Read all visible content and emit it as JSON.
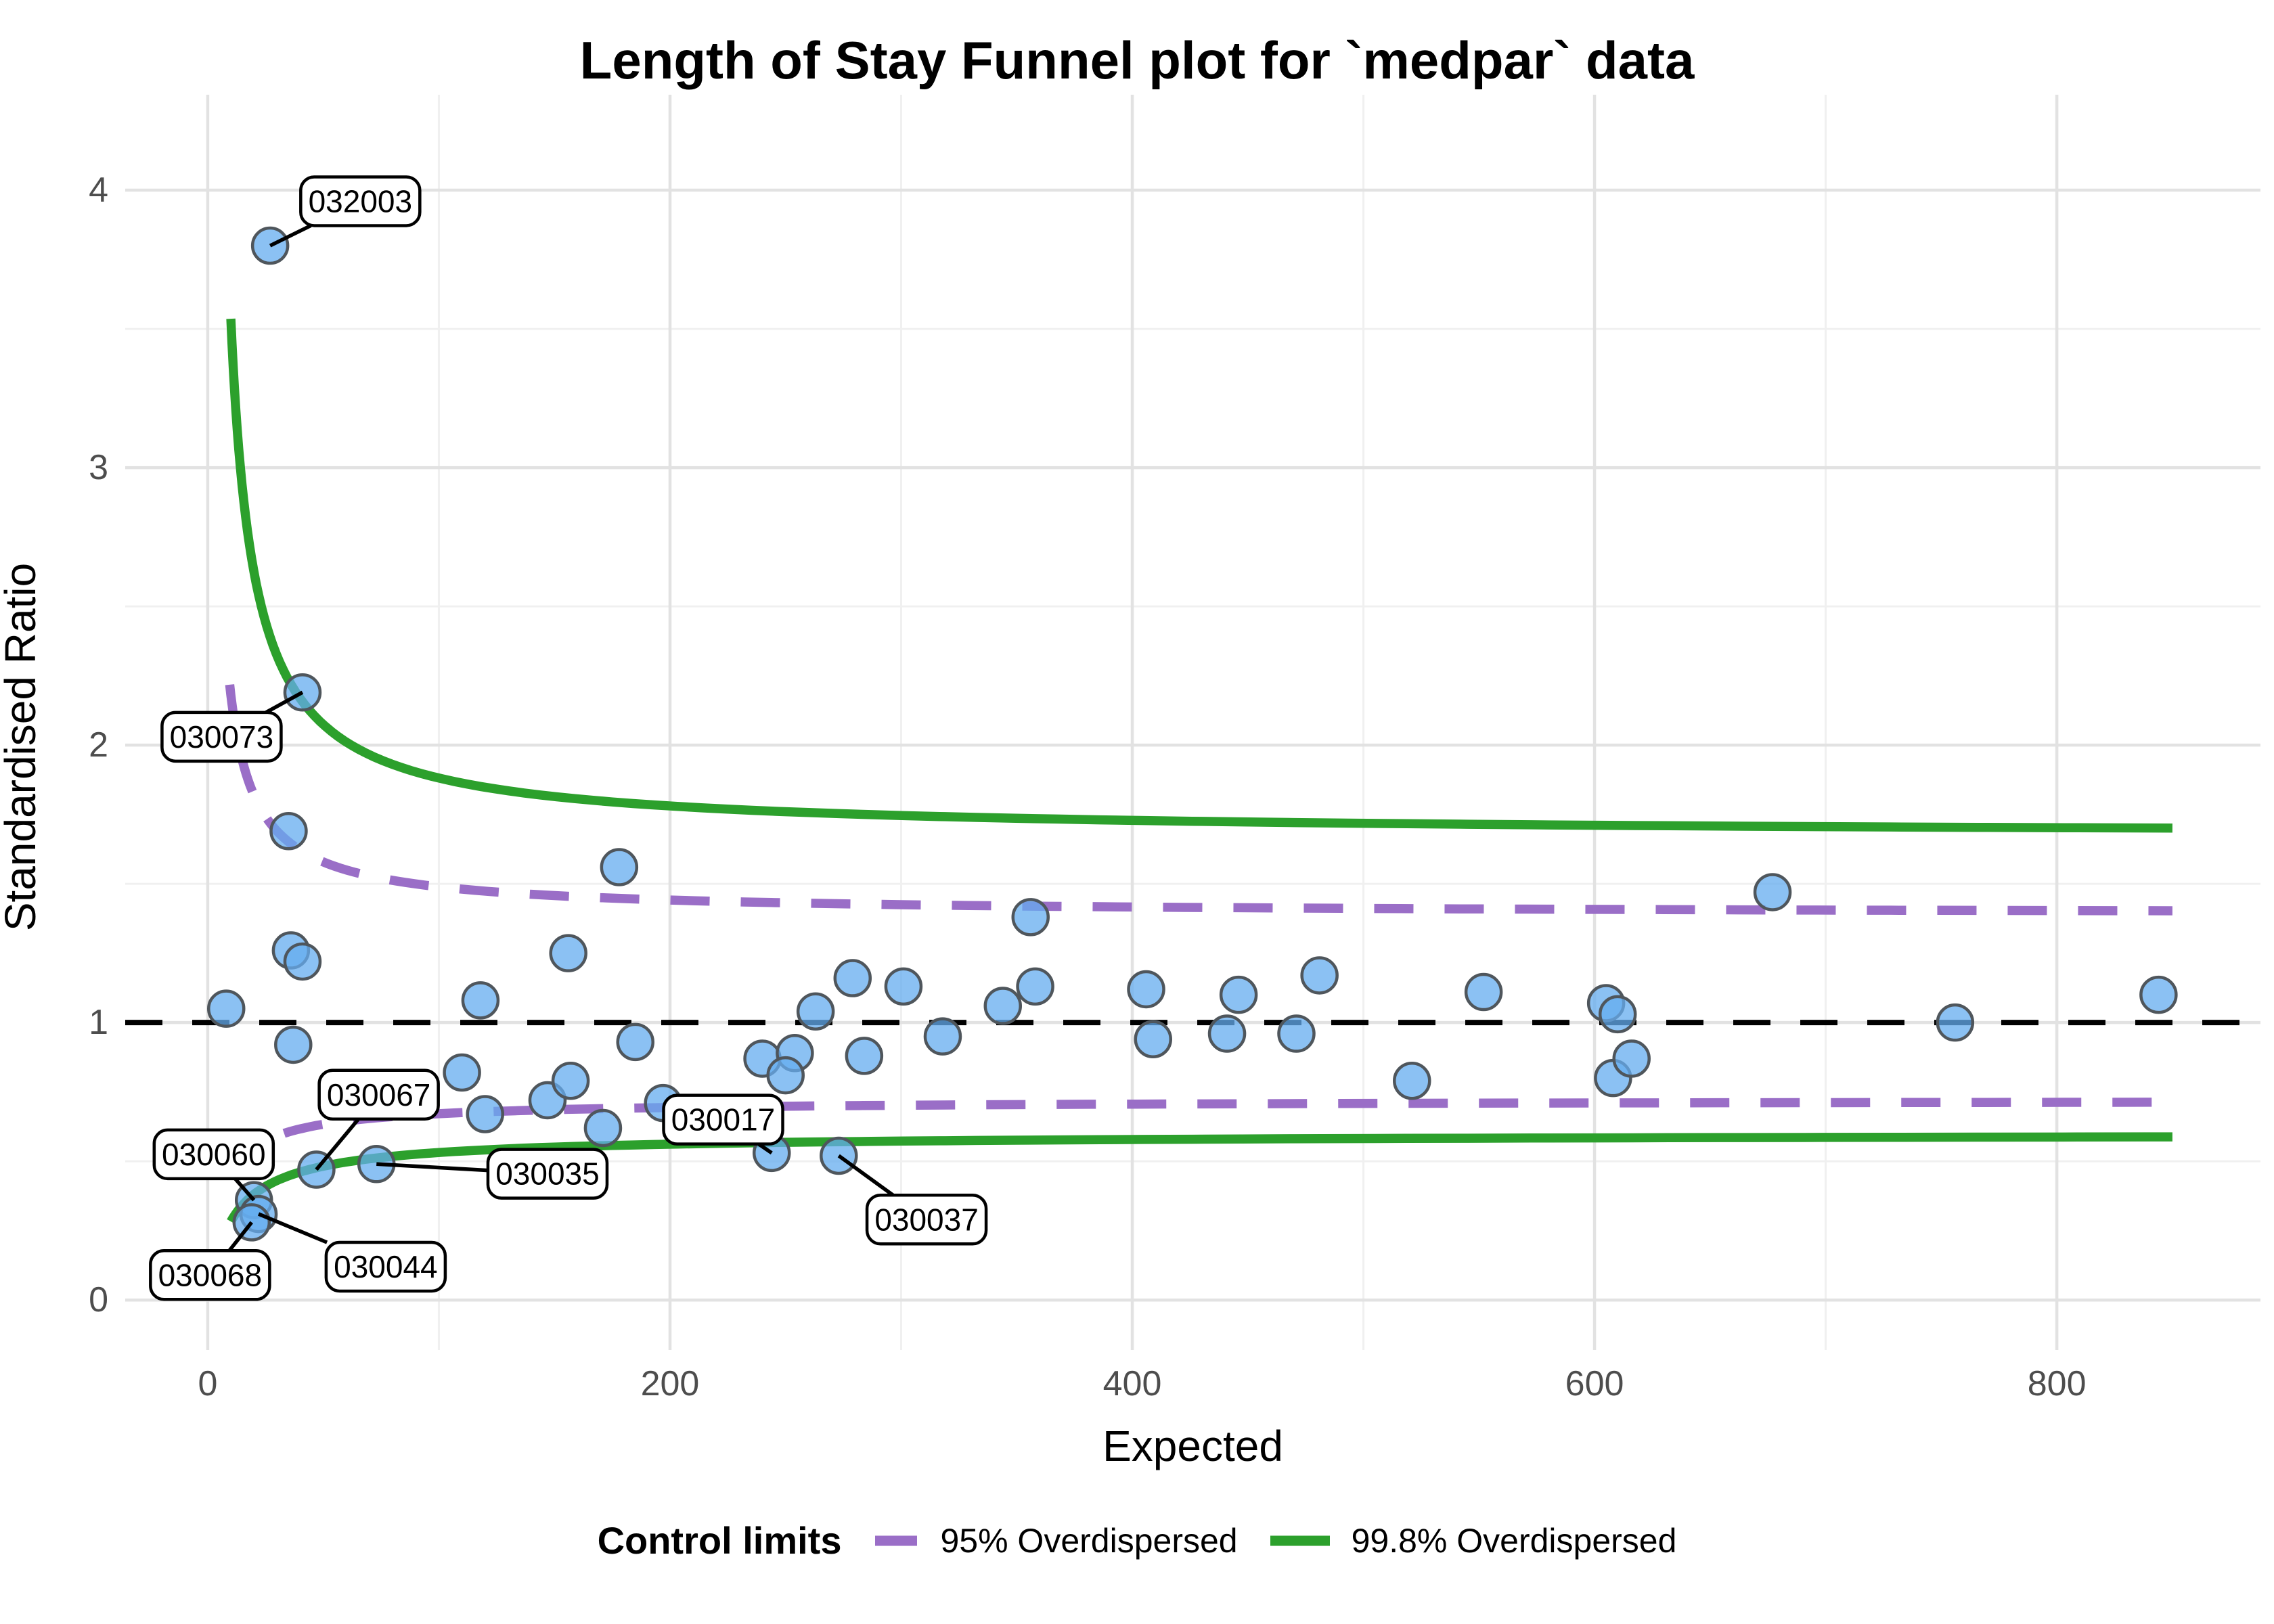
{
  "colors": {
    "green": "#2CA02C",
    "purple": "#9A6EC7",
    "dot_fill": "#64ACEF",
    "dot_stroke": "#4F565C",
    "grid_major": "#E2E2E2",
    "grid_minor": "#F0F0F0",
    "tick_label": "#4D4D4D",
    "reference": "#000000",
    "annotation_border": "#000000",
    "annotation_fill": "#FFFFFF"
  },
  "chart_data": {
    "type": "scatter",
    "title": "Length of Stay Funnel plot for `medpar` data",
    "xlabel": "Expected",
    "ylabel": "Standardised Ratio",
    "xlim": [
      -35.7,
      888.1
    ],
    "ylim": [
      -0.18,
      4.344
    ],
    "x_ticks": [
      0,
      200,
      400,
      600,
      800
    ],
    "x_minor_ticks": [
      100,
      300,
      500,
      700
    ],
    "y_ticks": [
      0,
      1,
      2,
      3,
      4
    ],
    "y_minor_ticks": [
      0.5,
      1.5,
      2.5,
      3.5
    ],
    "grid": true,
    "reference_line_y": 1,
    "legend": {
      "title": "Control limits",
      "items": [
        {
          "label": "95% Overdispersed",
          "style": "dashed",
          "color_key": "purple"
        },
        {
          "label": "99.8% Overdispersed",
          "style": "solid",
          "color_key": "green"
        }
      ]
    },
    "curves": [
      {
        "name": "95% Overdispersed",
        "style": "dashed",
        "color_key": "purple",
        "z": 1.96,
        "a": 1.3,
        "b": 0.0283,
        "domain": [
          9.5,
          850
        ],
        "upper_samples": [
          [
            9.5,
            2.22
          ],
          [
            15,
            1.94
          ],
          [
            30,
            1.69
          ],
          [
            65,
            1.54
          ],
          [
            120,
            1.47
          ],
          [
            210,
            1.44
          ],
          [
            420,
            1.42
          ],
          [
            850,
            1.4
          ]
        ],
        "lower_samples": [
          [
            9.5,
            0.45
          ],
          [
            15,
            0.51
          ],
          [
            30,
            0.59
          ],
          [
            65,
            0.65
          ],
          [
            120,
            0.68
          ],
          [
            210,
            0.7
          ],
          [
            420,
            0.71
          ],
          [
            850,
            0.71
          ]
        ]
      },
      {
        "name": "99.8% Overdispersed",
        "style": "solid",
        "color_key": "green",
        "z": 3.09,
        "a": 1.392,
        "b": 0.0279,
        "domain": [
          10,
          850
        ],
        "upper_samples": [
          [
            10,
            3.54
          ],
          [
            15,
            2.93
          ],
          [
            30,
            2.32
          ],
          [
            65,
            1.99
          ],
          [
            120,
            1.85
          ],
          [
            210,
            1.78
          ],
          [
            420,
            1.73
          ],
          [
            850,
            1.7
          ]
        ],
        "lower_samples": [
          [
            10,
            0.28
          ],
          [
            15,
            0.34
          ],
          [
            30,
            0.43
          ],
          [
            65,
            0.5
          ],
          [
            120,
            0.54
          ],
          [
            210,
            0.56
          ],
          [
            420,
            0.58
          ],
          [
            850,
            0.59
          ]
        ]
      }
    ],
    "points": [
      {
        "x": 27,
        "y": 3.8,
        "label": "032003"
      },
      {
        "x": 41,
        "y": 2.19,
        "label": "030073"
      },
      {
        "x": 35,
        "y": 1.69
      },
      {
        "x": 36,
        "y": 1.26
      },
      {
        "x": 41,
        "y": 1.22
      },
      {
        "x": 8,
        "y": 1.05
      },
      {
        "x": 37,
        "y": 0.92
      },
      {
        "x": 47,
        "y": 0.47,
        "label": "030067"
      },
      {
        "x": 73,
        "y": 0.49,
        "label": "030035"
      },
      {
        "x": 20,
        "y": 0.36,
        "label": "030060"
      },
      {
        "x": 22,
        "y": 0.31,
        "label": "030044"
      },
      {
        "x": 19,
        "y": 0.28,
        "label": "030068"
      },
      {
        "x": 110,
        "y": 0.82
      },
      {
        "x": 120,
        "y": 0.67
      },
      {
        "x": 147,
        "y": 0.72
      },
      {
        "x": 157,
        "y": 0.79
      },
      {
        "x": 171,
        "y": 0.62
      },
      {
        "x": 118,
        "y": 1.08
      },
      {
        "x": 178,
        "y": 1.56
      },
      {
        "x": 156,
        "y": 1.25
      },
      {
        "x": 185,
        "y": 0.93
      },
      {
        "x": 197,
        "y": 0.71
      },
      {
        "x": 240,
        "y": 0.87
      },
      {
        "x": 254,
        "y": 0.89
      },
      {
        "x": 250,
        "y": 0.81
      },
      {
        "x": 263,
        "y": 1.04
      },
      {
        "x": 284,
        "y": 0.88
      },
      {
        "x": 279,
        "y": 1.16
      },
      {
        "x": 301,
        "y": 1.13
      },
      {
        "x": 244,
        "y": 0.53,
        "label": "030017"
      },
      {
        "x": 273,
        "y": 0.52,
        "label": "030037"
      },
      {
        "x": 318,
        "y": 0.95
      },
      {
        "x": 344,
        "y": 1.06
      },
      {
        "x": 356,
        "y": 1.38
      },
      {
        "x": 358,
        "y": 1.13
      },
      {
        "x": 406,
        "y": 1.12
      },
      {
        "x": 409,
        "y": 0.94
      },
      {
        "x": 441,
        "y": 0.96
      },
      {
        "x": 446,
        "y": 1.1
      },
      {
        "x": 471,
        "y": 0.96
      },
      {
        "x": 481,
        "y": 1.17
      },
      {
        "x": 521,
        "y": 0.79
      },
      {
        "x": 552,
        "y": 1.11
      },
      {
        "x": 605,
        "y": 1.07
      },
      {
        "x": 610,
        "y": 1.03
      },
      {
        "x": 608,
        "y": 0.8
      },
      {
        "x": 616,
        "y": 0.87
      },
      {
        "x": 677,
        "y": 1.47
      },
      {
        "x": 756,
        "y": 1.0
      },
      {
        "x": 844,
        "y": 1.1
      }
    ],
    "annotations": [
      {
        "text": "032003",
        "box_x": 66,
        "box_y": 3.96,
        "point_x": 27,
        "point_y": 3.8
      },
      {
        "text": "030073",
        "box_x": 6,
        "box_y": 2.03,
        "point_x": 41,
        "point_y": 2.19
      },
      {
        "text": "030067",
        "box_x": 74,
        "box_y": 0.74,
        "point_x": 47,
        "point_y": 0.47
      },
      {
        "text": "030060",
        "box_x": 2.6,
        "box_y": 0.525,
        "point_x": 20,
        "point_y": 0.36
      },
      {
        "text": "030068",
        "box_x": 1,
        "box_y": 0.09,
        "point_x": 19,
        "point_y": 0.28
      },
      {
        "text": "030044",
        "box_x": 77,
        "box_y": 0.12,
        "point_x": 22,
        "point_y": 0.31
      },
      {
        "text": "030035",
        "box_x": 147,
        "box_y": 0.455,
        "point_x": 73,
        "point_y": 0.49
      },
      {
        "text": "030017",
        "box_x": 223,
        "box_y": 0.65,
        "point_x": 244,
        "point_y": 0.53
      },
      {
        "text": "030037",
        "box_x": 311,
        "box_y": 0.29,
        "point_x": 273,
        "point_y": 0.52
      }
    ]
  }
}
